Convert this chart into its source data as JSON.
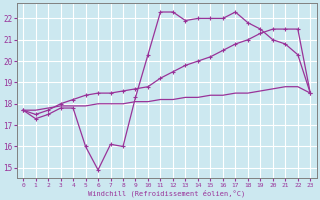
{
  "xlabel": "Windchill (Refroidissement éolien,°C)",
  "bg_color": "#cce8f0",
  "grid_color": "#b0d0dc",
  "line_color": "#993399",
  "marker_color": "#993399",
  "xlim": [
    -0.5,
    23.5
  ],
  "ylim": [
    14.5,
    22.7
  ],
  "xticks": [
    0,
    1,
    2,
    3,
    4,
    5,
    6,
    7,
    8,
    9,
    10,
    11,
    12,
    13,
    14,
    15,
    16,
    17,
    18,
    19,
    20,
    21,
    22,
    23
  ],
  "yticks": [
    15,
    16,
    17,
    18,
    19,
    20,
    21,
    22
  ],
  "series1_x": [
    0,
    1,
    2,
    3,
    4,
    5,
    6,
    7,
    8,
    9,
    10,
    11,
    12,
    13,
    14,
    15,
    16,
    17,
    18,
    19,
    20,
    21,
    22,
    23
  ],
  "series1_y": [
    17.7,
    17.3,
    17.5,
    17.8,
    17.8,
    16.0,
    14.9,
    16.1,
    16.0,
    18.3,
    20.3,
    22.3,
    22.3,
    21.9,
    22.0,
    22.0,
    22.0,
    22.3,
    21.8,
    21.5,
    21.0,
    20.8,
    20.3,
    18.5
  ],
  "series2_x": [
    0,
    1,
    2,
    3,
    4,
    5,
    6,
    7,
    8,
    9,
    10,
    11,
    12,
    13,
    14,
    15,
    16,
    17,
    18,
    19,
    20,
    21,
    22,
    23
  ],
  "series2_y": [
    17.7,
    17.5,
    17.7,
    18.0,
    18.2,
    18.4,
    18.5,
    18.5,
    18.6,
    18.7,
    18.8,
    19.2,
    19.5,
    19.8,
    20.0,
    20.2,
    20.5,
    20.8,
    21.0,
    21.3,
    21.5,
    21.5,
    21.5,
    18.5
  ],
  "series3_x": [
    0,
    1,
    2,
    3,
    4,
    5,
    6,
    7,
    8,
    9,
    10,
    11,
    12,
    13,
    14,
    15,
    16,
    17,
    18,
    19,
    20,
    21,
    22,
    23
  ],
  "series3_y": [
    17.7,
    17.7,
    17.8,
    17.9,
    17.9,
    17.9,
    18.0,
    18.0,
    18.0,
    18.1,
    18.1,
    18.2,
    18.2,
    18.3,
    18.3,
    18.4,
    18.4,
    18.5,
    18.5,
    18.6,
    18.7,
    18.8,
    18.8,
    18.5
  ]
}
